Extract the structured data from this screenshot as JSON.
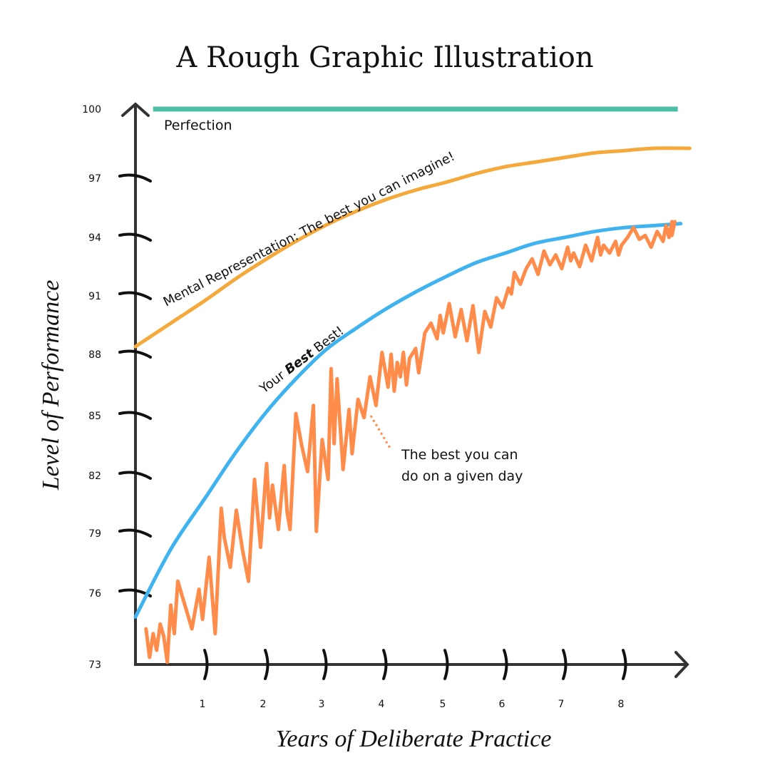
{
  "chart_data": {
    "type": "line",
    "title": "A Rough Graphic Illustration",
    "xlabel": "Years of Deliberate Practice",
    "ylabel": "Level of Performance",
    "x_ticks": [
      "1",
      "2",
      "3",
      "4",
      "5",
      "6",
      "7",
      "8"
    ],
    "y_ticks": [
      "73",
      "76",
      "79",
      "82",
      "85",
      "88",
      "91",
      "94",
      "97",
      "100"
    ],
    "xlim": [
      0,
      9.3
    ],
    "ylim": [
      73,
      100
    ],
    "annotations": {
      "perfection": "Perfection",
      "mental": "Mental Representation:  The best you can imagine!",
      "best_pre": "Your ",
      "best_bold": "Best",
      "best_post": " Best!",
      "day_line1": "The best you can",
      "day_line2": "do on a given day"
    },
    "series": [
      {
        "key": "perfection",
        "color": "#4dbfa9",
        "x": [
          0.25,
          8.9
        ],
        "y": [
          100,
          100
        ]
      },
      {
        "key": "mental",
        "color": "#f5a93b",
        "x": [
          0,
          0.5,
          1,
          1.5,
          2,
          2.5,
          3,
          3.5,
          4,
          4.5,
          5,
          5.5,
          6,
          6.5,
          7,
          7.5,
          8,
          8.5,
          9.1
        ],
        "y": [
          88.4,
          89.6,
          90.8,
          91.9,
          92.9,
          93.8,
          94.6,
          95.3,
          95.9,
          96.4,
          96.8,
          97.2,
          97.5,
          97.7,
          97.9,
          98.1,
          98.2,
          98.3,
          98.3
        ]
      },
      {
        "key": "best",
        "color": "#3fb2f0",
        "x": [
          0,
          0.5,
          1,
          1.5,
          2,
          2.5,
          3,
          3.5,
          4,
          4.5,
          5,
          5.5,
          6,
          6.5,
          7,
          7.5,
          8,
          8.5,
          8.95
        ],
        "y": [
          75,
          78.2,
          80.9,
          83.2,
          85.2,
          86.8,
          88.2,
          89.3,
          90.3,
          91.2,
          92,
          92.7,
          93.2,
          93.7,
          94,
          94.3,
          94.5,
          94.6,
          94.7
        ]
      },
      {
        "key": "daily",
        "color": "#ff8c4a",
        "x": [
          0.15,
          0.2,
          0.25,
          0.3,
          0.35,
          0.4,
          0.45,
          0.5,
          0.55,
          0.6,
          0.7,
          0.8,
          0.9,
          0.95,
          1.05,
          1.15,
          1.25,
          1.3,
          1.4,
          1.5,
          1.6,
          1.7,
          1.8,
          1.9,
          2.0,
          2.05,
          2.1,
          2.2,
          2.3,
          2.35,
          2.4,
          2.5,
          2.6,
          2.7,
          2.8,
          2.85,
          2.95,
          3.05,
          3.1,
          3.15,
          3.2,
          3.3,
          3.4,
          3.45,
          3.55,
          3.65,
          3.75,
          3.85,
          3.95,
          4.05,
          4.1,
          4.15,
          4.2,
          4.25,
          4.3,
          4.35,
          4.4,
          4.5,
          4.55,
          4.65,
          4.75,
          4.85,
          4.9,
          4.95,
          5.05,
          5.15,
          5.25,
          5.35,
          5.45,
          5.55,
          5.65,
          5.75,
          5.85,
          5.95,
          6.05,
          6.1,
          6.15,
          6.25,
          6.35,
          6.45,
          6.55,
          6.65,
          6.75,
          6.85,
          6.95,
          7.05,
          7.1,
          7.15,
          7.25,
          7.35,
          7.45,
          7.55,
          7.6,
          7.65,
          7.75,
          7.85,
          7.9,
          7.95,
          8.05,
          8.15,
          8.25,
          8.35,
          8.45,
          8.55,
          8.65,
          8.7,
          8.75,
          8.8,
          8.8,
          8.85
        ],
        "y": [
          74.5,
          73.3,
          74.3,
          73.6,
          74.7,
          74.2,
          73.1,
          75.5,
          74.3,
          76.6,
          75.5,
          74.5,
          76.2,
          74.9,
          77.8,
          74.3,
          80.3,
          78.8,
          77.3,
          80.2,
          78.2,
          76.6,
          81.8,
          78.3,
          82.6,
          79.8,
          81.5,
          79.2,
          82.5,
          80.1,
          79.2,
          85.1,
          83.5,
          82.2,
          85.5,
          79.1,
          83.8,
          81.8,
          87.3,
          83.6,
          86.8,
          82.3,
          85.3,
          83.1,
          85.8,
          84.9,
          86.9,
          85.5,
          88.1,
          86.4,
          88.0,
          86.2,
          87.6,
          86.9,
          88.1,
          86.5,
          87.8,
          88.3,
          87.1,
          89.1,
          89.6,
          88.8,
          90.0,
          89.1,
          90.6,
          88.9,
          90.3,
          88.7,
          90.5,
          88.1,
          90.2,
          89.4,
          90.9,
          90.4,
          91.4,
          91.1,
          92.2,
          91.6,
          92.4,
          92.9,
          92.1,
          93.3,
          92.6,
          93.1,
          92.4,
          93.5,
          92.8,
          93.2,
          92.5,
          93.6,
          92.8,
          94.0,
          93.1,
          93.6,
          93.2,
          93.8,
          93.1,
          93.6,
          94.0,
          94.5,
          93.9,
          94.1,
          93.5,
          94.3,
          93.8,
          94.6,
          94.0,
          94.8,
          94.1,
          94.8
        ]
      }
    ]
  }
}
